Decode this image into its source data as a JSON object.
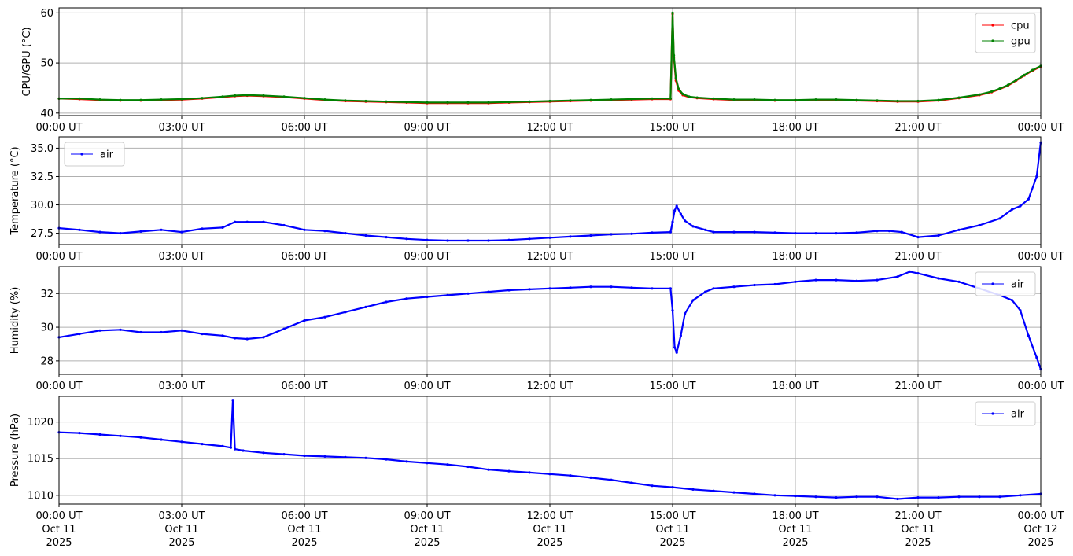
{
  "chart_data": [
    {
      "type": "line",
      "title": "",
      "ylabel": "CPU/GPU (°C)",
      "xlim_hours": [
        0,
        24
      ],
      "ylim": [
        39.5,
        61
      ],
      "yticks": [
        40,
        50,
        60
      ],
      "xticks": [
        "00:00 UT",
        "03:00 UT",
        "06:00 UT",
        "09:00 UT",
        "12:00 UT",
        "15:00 UT",
        "18:00 UT",
        "21:00 UT",
        "00:00 UT"
      ],
      "grid": true,
      "legend_position": "top-right",
      "series": [
        {
          "name": "cpu",
          "color": "#ff0000",
          "x_hours": [
            0,
            0.5,
            1.0,
            1.5,
            2.0,
            2.5,
            3.0,
            3.5,
            4.0,
            4.3,
            4.6,
            5.0,
            5.5,
            6.0,
            6.5,
            7.0,
            7.5,
            8.0,
            8.5,
            9.0,
            9.5,
            10.0,
            10.5,
            11.0,
            11.5,
            12.0,
            12.5,
            13.0,
            13.5,
            14.0,
            14.5,
            14.95,
            15.0,
            15.03,
            15.08,
            15.15,
            15.25,
            15.4,
            15.6,
            16.0,
            16.5,
            17.0,
            17.5,
            18.0,
            18.5,
            19.0,
            19.5,
            20.0,
            20.5,
            21.0,
            21.5,
            22.0,
            22.5,
            22.8,
            23.0,
            23.2,
            23.4,
            23.6,
            23.8,
            24.0
          ],
          "values": [
            42.9,
            42.8,
            42.6,
            42.5,
            42.5,
            42.6,
            42.7,
            42.9,
            43.2,
            43.4,
            43.5,
            43.4,
            43.2,
            42.9,
            42.6,
            42.4,
            42.3,
            42.2,
            42.1,
            42.0,
            42.0,
            42.0,
            42.0,
            42.1,
            42.2,
            42.3,
            42.4,
            42.5,
            42.6,
            42.7,
            42.8,
            42.8,
            59.8,
            51.0,
            46.5,
            44.5,
            43.6,
            43.2,
            43.0,
            42.8,
            42.6,
            42.6,
            42.5,
            42.5,
            42.6,
            42.6,
            42.5,
            42.4,
            42.3,
            42.3,
            42.5,
            43.0,
            43.6,
            44.2,
            44.8,
            45.5,
            46.5,
            47.5,
            48.5,
            49.3
          ]
        },
        {
          "name": "gpu",
          "color": "#008000",
          "x_hours": [
            0,
            0.5,
            1.0,
            1.5,
            2.0,
            2.5,
            3.0,
            3.5,
            4.0,
            4.3,
            4.6,
            5.0,
            5.5,
            6.0,
            6.5,
            7.0,
            7.5,
            8.0,
            8.5,
            9.0,
            9.5,
            10.0,
            10.5,
            11.0,
            11.5,
            12.0,
            12.5,
            13.0,
            13.5,
            14.0,
            14.5,
            14.95,
            15.0,
            15.03,
            15.08,
            15.15,
            15.25,
            15.4,
            15.6,
            16.0,
            16.5,
            17.0,
            17.5,
            18.0,
            18.5,
            19.0,
            19.5,
            20.0,
            20.5,
            21.0,
            21.5,
            22.0,
            22.5,
            22.8,
            23.0,
            23.2,
            23.4,
            23.6,
            23.8,
            24.0
          ],
          "values": [
            42.9,
            42.9,
            42.7,
            42.6,
            42.6,
            42.7,
            42.8,
            43.0,
            43.3,
            43.5,
            43.6,
            43.5,
            43.3,
            43.0,
            42.7,
            42.5,
            42.4,
            42.3,
            42.2,
            42.1,
            42.1,
            42.1,
            42.1,
            42.2,
            42.3,
            42.4,
            42.5,
            42.6,
            42.7,
            42.8,
            42.9,
            42.9,
            60.0,
            51.5,
            47.0,
            44.8,
            43.8,
            43.3,
            43.1,
            42.9,
            42.7,
            42.7,
            42.6,
            42.6,
            42.7,
            42.7,
            42.6,
            42.5,
            42.4,
            42.4,
            42.6,
            43.1,
            43.7,
            44.3,
            44.9,
            45.6,
            46.6,
            47.6,
            48.6,
            49.4
          ]
        }
      ]
    },
    {
      "type": "line",
      "title": "",
      "ylabel": "Temperature (°C)",
      "xlim_hours": [
        0,
        24
      ],
      "ylim": [
        26.5,
        36.0
      ],
      "yticks": [
        27.5,
        30.0,
        32.5,
        35.0
      ],
      "ytick_labels": [
        "27.5",
        "30.0",
        "32.5",
        "35.0"
      ],
      "xticks": [
        "00:00 UT",
        "03:00 UT",
        "06:00 UT",
        "09:00 UT",
        "12:00 UT",
        "15:00 UT",
        "18:00 UT",
        "21:00 UT",
        "00:00 UT"
      ],
      "grid": true,
      "legend_position": "top-left",
      "series": [
        {
          "name": "air",
          "color": "#0000ff",
          "x_hours": [
            0,
            0.5,
            1.0,
            1.5,
            2.0,
            2.5,
            3.0,
            3.5,
            4.0,
            4.3,
            4.6,
            5.0,
            5.5,
            6.0,
            6.5,
            7.0,
            7.5,
            8.0,
            8.5,
            9.0,
            9.5,
            10.0,
            10.5,
            11.0,
            11.5,
            12.0,
            12.5,
            13.0,
            13.5,
            14.0,
            14.5,
            14.95,
            15.0,
            15.05,
            15.1,
            15.2,
            15.3,
            15.5,
            15.8,
            16.0,
            16.5,
            17.0,
            17.5,
            18.0,
            18.5,
            19.0,
            19.5,
            20.0,
            20.3,
            20.6,
            21.0,
            21.5,
            22.0,
            22.5,
            23.0,
            23.3,
            23.5,
            23.7,
            23.9,
            24.0
          ],
          "values": [
            27.95,
            27.8,
            27.6,
            27.5,
            27.65,
            27.8,
            27.6,
            27.9,
            28.0,
            28.5,
            28.5,
            28.5,
            28.2,
            27.8,
            27.7,
            27.5,
            27.3,
            27.15,
            27.0,
            26.9,
            26.85,
            26.85,
            26.85,
            26.9,
            27.0,
            27.1,
            27.2,
            27.3,
            27.4,
            27.45,
            27.55,
            27.6,
            28.5,
            29.5,
            29.9,
            29.2,
            28.6,
            28.1,
            27.8,
            27.6,
            27.6,
            27.6,
            27.55,
            27.5,
            27.5,
            27.5,
            27.55,
            27.7,
            27.7,
            27.6,
            27.15,
            27.3,
            27.8,
            28.2,
            28.8,
            29.6,
            29.9,
            30.5,
            32.5,
            35.5
          ]
        }
      ]
    },
    {
      "type": "line",
      "title": "",
      "ylabel": "Humidity (%)",
      "xlim_hours": [
        0,
        24
      ],
      "ylim": [
        27.2,
        33.6
      ],
      "yticks": [
        28,
        30,
        32
      ],
      "xticks": [
        "00:00 UT",
        "03:00 UT",
        "06:00 UT",
        "09:00 UT",
        "12:00 UT",
        "15:00 UT",
        "18:00 UT",
        "21:00 UT",
        "00:00 UT"
      ],
      "grid": true,
      "legend_position": "top-right",
      "series": [
        {
          "name": "air",
          "color": "#0000ff",
          "x_hours": [
            0,
            0.5,
            1.0,
            1.5,
            2.0,
            2.5,
            3.0,
            3.5,
            4.0,
            4.3,
            4.6,
            5.0,
            5.5,
            6.0,
            6.5,
            7.0,
            7.5,
            8.0,
            8.5,
            9.0,
            9.5,
            10.0,
            10.5,
            11.0,
            11.5,
            12.0,
            12.5,
            13.0,
            13.5,
            14.0,
            14.5,
            14.95,
            15.0,
            15.05,
            15.1,
            15.2,
            15.3,
            15.5,
            15.8,
            16.0,
            16.5,
            17.0,
            17.5,
            18.0,
            18.5,
            19.0,
            19.5,
            20.0,
            20.5,
            20.8,
            21.0,
            21.5,
            22.0,
            22.5,
            23.0,
            23.3,
            23.5,
            23.7,
            23.9,
            24.0
          ],
          "values": [
            29.4,
            29.6,
            29.8,
            29.85,
            29.7,
            29.7,
            29.8,
            29.6,
            29.5,
            29.35,
            29.3,
            29.4,
            29.9,
            30.4,
            30.6,
            30.9,
            31.2,
            31.5,
            31.7,
            31.8,
            31.9,
            32.0,
            32.1,
            32.2,
            32.25,
            32.3,
            32.35,
            32.4,
            32.4,
            32.35,
            32.3,
            32.3,
            31.0,
            28.8,
            28.5,
            29.5,
            30.8,
            31.6,
            32.1,
            32.3,
            32.4,
            32.5,
            32.55,
            32.7,
            32.8,
            32.8,
            32.75,
            32.8,
            33.0,
            33.3,
            33.2,
            32.9,
            32.7,
            32.3,
            31.9,
            31.6,
            31.0,
            29.5,
            28.2,
            27.5
          ]
        }
      ]
    },
    {
      "type": "line",
      "title": "",
      "ylabel": "Pressure (hPa)",
      "xlim_hours": [
        0,
        24
      ],
      "ylim": [
        1008.8,
        1023.5
      ],
      "yticks": [
        1010,
        1015,
        1020
      ],
      "xticks": [
        "00:00 UT",
        "03:00 UT",
        "06:00 UT",
        "09:00 UT",
        "12:00 UT",
        "15:00 UT",
        "18:00 UT",
        "21:00 UT",
        "00:00 UT"
      ],
      "xtick_dates": [
        "Oct 11",
        "Oct 11",
        "Oct 11",
        "Oct 11",
        "Oct 11",
        "Oct 11",
        "Oct 11",
        "Oct 11",
        "Oct 12"
      ],
      "xtick_years": [
        "2025",
        "2025",
        "2025",
        "2025",
        "2025",
        "2025",
        "2025",
        "2025",
        "2025"
      ],
      "grid": true,
      "legend_position": "top-right",
      "series": [
        {
          "name": "air",
          "color": "#0000ff",
          "x_hours": [
            0,
            0.5,
            1.0,
            1.5,
            2.0,
            2.5,
            3.0,
            3.5,
            4.0,
            4.2,
            4.25,
            4.3,
            4.5,
            5.0,
            5.5,
            6.0,
            6.5,
            7.0,
            7.5,
            8.0,
            8.5,
            9.0,
            9.5,
            10.0,
            10.5,
            11.0,
            11.5,
            12.0,
            12.5,
            13.0,
            13.5,
            14.0,
            14.5,
            15.0,
            15.5,
            16.0,
            16.5,
            17.0,
            17.5,
            18.0,
            18.5,
            19.0,
            19.5,
            20.0,
            20.5,
            21.0,
            21.5,
            22.0,
            22.5,
            23.0,
            23.5,
            24.0
          ],
          "values": [
            1018.6,
            1018.5,
            1018.3,
            1018.1,
            1017.9,
            1017.6,
            1017.3,
            1017.0,
            1016.7,
            1016.5,
            1023.0,
            1016.3,
            1016.1,
            1015.8,
            1015.6,
            1015.4,
            1015.3,
            1015.2,
            1015.1,
            1014.9,
            1014.6,
            1014.4,
            1014.2,
            1013.9,
            1013.5,
            1013.3,
            1013.1,
            1012.9,
            1012.7,
            1012.4,
            1012.1,
            1011.7,
            1011.3,
            1011.1,
            1010.8,
            1010.6,
            1010.4,
            1010.2,
            1010.0,
            1009.9,
            1009.8,
            1009.7,
            1009.8,
            1009.8,
            1009.5,
            1009.7,
            1009.7,
            1009.8,
            1009.8,
            1009.8,
            1010.0,
            1010.2
          ]
        }
      ]
    }
  ]
}
